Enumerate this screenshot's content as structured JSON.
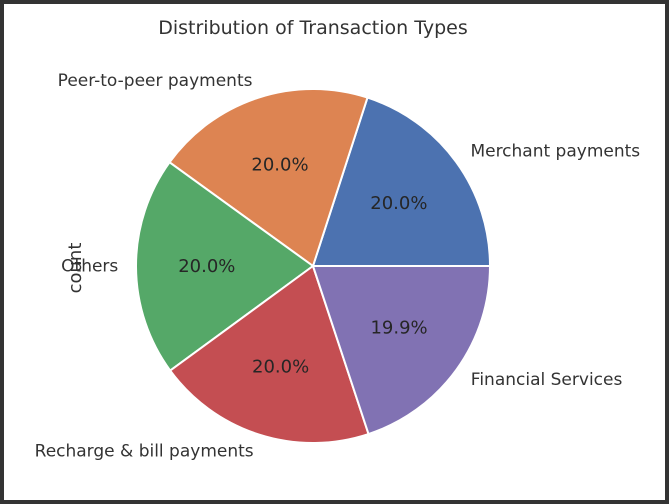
{
  "chart_data": {
    "type": "pie",
    "title": "Distribution of Transaction Types",
    "ylabel": "count",
    "categories": [
      "Merchant payments",
      "Peer-to-peer payments",
      "Others",
      "Recharge & bill payments",
      "Financial Services"
    ],
    "values": [
      20.0,
      20.0,
      20.0,
      20.0,
      19.9
    ],
    "labels": [
      "20.0%",
      "20.0%",
      "20.0%",
      "20.0%",
      "19.9%"
    ],
    "colors": [
      "#4c72b0",
      "#dd8452",
      "#55a868",
      "#c44e52",
      "#8172b3"
    ],
    "start_angle": 0,
    "direction": "counterclockwise"
  }
}
